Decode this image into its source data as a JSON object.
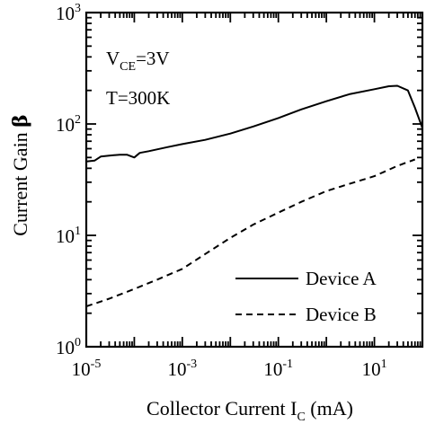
{
  "chart_data": {
    "type": "line",
    "xscale": "log",
    "yscale": "log",
    "xlim": [
      1e-05,
      100
    ],
    "ylim": [
      1,
      1000
    ],
    "xlabel": {
      "main": "Collector Current I",
      "sub": "C",
      "unit": " (mA)"
    },
    "ylabel": {
      "main": "Current Gain ",
      "symbol": "β"
    },
    "x_ticks": [
      {
        "value": 1e-05,
        "base": "10",
        "exp": "-5"
      },
      {
        "value": 0.001,
        "base": "10",
        "exp": "-3"
      },
      {
        "value": 0.1,
        "base": "10",
        "exp": "-1"
      },
      {
        "value": 10,
        "base": "10",
        "exp": "1"
      }
    ],
    "y_ticks": [
      {
        "value": 1,
        "base": "10",
        "exp": "0"
      },
      {
        "value": 10,
        "base": "10",
        "exp": "1"
      },
      {
        "value": 100,
        "base": "10",
        "exp": "2"
      },
      {
        "value": 1000,
        "base": "10",
        "exp": "3"
      }
    ],
    "annotations": {
      "condition1": {
        "main": "V",
        "sub": "CE",
        "rest": "=3V"
      },
      "condition2": "T=300K"
    },
    "legend_position": "bottom-right",
    "series": [
      {
        "name": "Device A",
        "style": "solid",
        "color": "#000000",
        "points": [
          [
            1e-05,
            46
          ],
          [
            1.5e-05,
            47
          ],
          [
            2e-05,
            51
          ],
          [
            3e-05,
            52
          ],
          [
            5e-05,
            53
          ],
          [
            7e-05,
            53
          ],
          [
            0.0001,
            50
          ],
          [
            0.00013,
            55
          ],
          [
            0.0002,
            57
          ],
          [
            0.0005,
            62
          ],
          [
            0.001,
            66
          ],
          [
            0.003,
            72
          ],
          [
            0.01,
            82
          ],
          [
            0.03,
            95
          ],
          [
            0.1,
            113
          ],
          [
            0.3,
            135
          ],
          [
            1,
            160
          ],
          [
            3,
            185
          ],
          [
            10,
            205
          ],
          [
            20,
            218
          ],
          [
            30,
            220
          ],
          [
            50,
            200
          ],
          [
            70,
            140
          ],
          [
            100,
            92
          ]
        ]
      },
      {
        "name": "Device B",
        "style": "dashed",
        "color": "#000000",
        "points": [
          [
            1e-05,
            2.3
          ],
          [
            3e-05,
            2.7
          ],
          [
            0.0001,
            3.3
          ],
          [
            0.0003,
            4.0
          ],
          [
            0.001,
            5.0
          ],
          [
            0.003,
            6.8
          ],
          [
            0.01,
            9.5
          ],
          [
            0.03,
            12.5
          ],
          [
            0.1,
            16
          ],
          [
            0.3,
            20
          ],
          [
            1,
            25
          ],
          [
            3,
            29
          ],
          [
            10,
            34
          ],
          [
            30,
            42
          ],
          [
            70,
            48
          ]
        ]
      }
    ]
  }
}
